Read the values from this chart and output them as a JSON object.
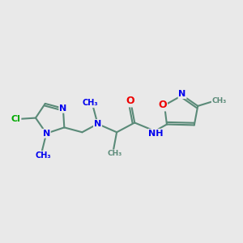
{
  "background_color": "#e9e9e9",
  "bond_color": "#5a8a78",
  "bond_width": 1.5,
  "atom_colors": {
    "N": "#0000ee",
    "O": "#ee0000",
    "Cl": "#00aa00",
    "C": "#5a8a78"
  },
  "figsize": [
    3.0,
    3.0
  ],
  "dpi": 100,
  "xlim": [
    0,
    10
  ],
  "ylim": [
    2,
    8
  ]
}
